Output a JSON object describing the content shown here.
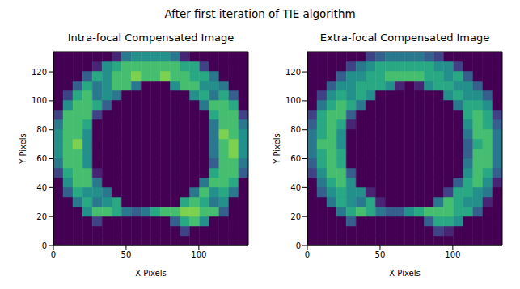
{
  "suptitle": "After first iteration of TIE algorithm",
  "chart_data": [
    {
      "type": "heatmap",
      "title": "Intra-focal Compensated Image",
      "x_label": "X Pixels",
      "y_label": "Y Pixels",
      "xlim": [
        0,
        134
      ],
      "ylim": [
        0,
        134
      ],
      "xticks": [
        0,
        50,
        100
      ],
      "yticks": [
        0,
        20,
        40,
        60,
        80,
        100,
        120
      ],
      "color": "viridis",
      "zlim": [
        0,
        10
      ],
      "cell_size": 6.7,
      "cells": [
        [
          0,
          0,
          0,
          0,
          0,
          0,
          0,
          0,
          0,
          0,
          0,
          0,
          0,
          0,
          0,
          0,
          0,
          0,
          0,
          0
        ],
        [
          0,
          0,
          0,
          0,
          0,
          0,
          0,
          0,
          0,
          0,
          0,
          0,
          0,
          2,
          0,
          0,
          0,
          0,
          0,
          0
        ],
        [
          0,
          0,
          0,
          0,
          2,
          0,
          0,
          0,
          0,
          0,
          0,
          0,
          3,
          6,
          7,
          5,
          0,
          0,
          0,
          0
        ],
        [
          0,
          0,
          0,
          5,
          7,
          7,
          6,
          4,
          3,
          4,
          6,
          7,
          7,
          8,
          8,
          7,
          7,
          3,
          0,
          0
        ],
        [
          0,
          0,
          4,
          6,
          4,
          5,
          6,
          0,
          0,
          0,
          0,
          0,
          0,
          6,
          7,
          6,
          4,
          5,
          0,
          0
        ],
        [
          0,
          3,
          6,
          5,
          5,
          4,
          0,
          0,
          0,
          0,
          0,
          0,
          0,
          0,
          4,
          7,
          5,
          6,
          4,
          0
        ],
        [
          0,
          5,
          7,
          7,
          4,
          0,
          0,
          0,
          0,
          0,
          0,
          0,
          0,
          0,
          0,
          4,
          7,
          7,
          6,
          0
        ],
        [
          2,
          6,
          7,
          7,
          1,
          0,
          0,
          0,
          0,
          0,
          0,
          0,
          0,
          0,
          0,
          0,
          6,
          7,
          7,
          3
        ],
        [
          4,
          7,
          7,
          5,
          0,
          0,
          0,
          0,
          0,
          0,
          0,
          0,
          0,
          0,
          0,
          0,
          3,
          7,
          7,
          4
        ],
        [
          5,
          7,
          7,
          5,
          0,
          0,
          0,
          0,
          0,
          0,
          0,
          0,
          0,
          0,
          0,
          0,
          4,
          7,
          8,
          5
        ],
        [
          5,
          7,
          8,
          5,
          0,
          0,
          0,
          0,
          0,
          0,
          0,
          0,
          0,
          0,
          0,
          0,
          4,
          7,
          8,
          5
        ],
        [
          5,
          7,
          7,
          5,
          0,
          0,
          0,
          0,
          0,
          0,
          0,
          0,
          0,
          0,
          0,
          0,
          4,
          8,
          7,
          5
        ],
        [
          4,
          7,
          7,
          6,
          0,
          0,
          0,
          0,
          0,
          0,
          0,
          0,
          0,
          0,
          0,
          0,
          4,
          7,
          7,
          4
        ],
        [
          2,
          7,
          7,
          7,
          2,
          0,
          0,
          0,
          0,
          0,
          0,
          0,
          0,
          0,
          0,
          0,
          6,
          7,
          7,
          2
        ],
        [
          0,
          5,
          7,
          7,
          6,
          3,
          0,
          0,
          0,
          0,
          0,
          0,
          0,
          0,
          0,
          4,
          7,
          7,
          6,
          0
        ],
        [
          0,
          2,
          6,
          7,
          4,
          5,
          4,
          0,
          0,
          0,
          0,
          0,
          0,
          0,
          5,
          6,
          4,
          6,
          3,
          0
        ],
        [
          0,
          0,
          3,
          6,
          4,
          5,
          7,
          7,
          4,
          0,
          0,
          0,
          5,
          7,
          7,
          5,
          5,
          4,
          0,
          0
        ],
        [
          0,
          0,
          0,
          3,
          6,
          5,
          7,
          7,
          8,
          7,
          7,
          8,
          7,
          7,
          6,
          6,
          4,
          0,
          0,
          0
        ],
        [
          0,
          0,
          0,
          0,
          1,
          5,
          6,
          7,
          7,
          7,
          7,
          7,
          7,
          6,
          6,
          2,
          0,
          0,
          0,
          0
        ],
        [
          0,
          0,
          0,
          0,
          0,
          0,
          1,
          4,
          5,
          5,
          5,
          5,
          4,
          1,
          0,
          0,
          0,
          0,
          0,
          0
        ]
      ]
    },
    {
      "type": "heatmap",
      "title": "Extra-focal Compensated Image",
      "x_label": "X Pixels",
      "y_label": "Y Pixels",
      "xlim": [
        0,
        134
      ],
      "ylim": [
        0,
        134
      ],
      "xticks": [
        0,
        50,
        100
      ],
      "yticks": [
        0,
        20,
        40,
        60,
        80,
        100,
        120
      ],
      "color": "viridis",
      "zlim": [
        0,
        10
      ],
      "cell_size": 6.7,
      "cells": [
        [
          0,
          0,
          0,
          0,
          0,
          0,
          0,
          0,
          0,
          0,
          0,
          0,
          0,
          0,
          0,
          0,
          0,
          0,
          0,
          0
        ],
        [
          0,
          0,
          0,
          0,
          0,
          0,
          0,
          0,
          0,
          0,
          0,
          0,
          0,
          2,
          1,
          0,
          0,
          0,
          0,
          0
        ],
        [
          0,
          0,
          0,
          0,
          3,
          0,
          0,
          0,
          0,
          0,
          0,
          0,
          3,
          6,
          6,
          5,
          0,
          0,
          0,
          0
        ],
        [
          0,
          0,
          0,
          4,
          6,
          7,
          6,
          4,
          3,
          3,
          5,
          6,
          7,
          7,
          7,
          6,
          6,
          3,
          0,
          0
        ],
        [
          0,
          0,
          4,
          6,
          5,
          4,
          6,
          1,
          0,
          0,
          0,
          0,
          0,
          4,
          7,
          6,
          5,
          5,
          1,
          0
        ],
        [
          0,
          3,
          5,
          6,
          5,
          5,
          1,
          0,
          0,
          0,
          0,
          0,
          0,
          0,
          2,
          6,
          6,
          5,
          4,
          0
        ],
        [
          0,
          4,
          6,
          7,
          5,
          0,
          0,
          0,
          0,
          0,
          0,
          0,
          0,
          0,
          0,
          3,
          6,
          7,
          5,
          1
        ],
        [
          2,
          5,
          7,
          7,
          3,
          0,
          0,
          0,
          0,
          0,
          0,
          0,
          0,
          0,
          0,
          0,
          5,
          7,
          6,
          3
        ],
        [
          3,
          6,
          7,
          6,
          0,
          0,
          0,
          0,
          0,
          0,
          0,
          0,
          0,
          0,
          0,
          0,
          4,
          7,
          7,
          4
        ],
        [
          4,
          6,
          7,
          6,
          0,
          0,
          0,
          0,
          0,
          0,
          0,
          0,
          0,
          0,
          0,
          0,
          3,
          7,
          7,
          4
        ],
        [
          4,
          7,
          7,
          5,
          0,
          0,
          0,
          0,
          0,
          0,
          0,
          0,
          0,
          0,
          0,
          0,
          3,
          6,
          7,
          4
        ],
        [
          4,
          6,
          7,
          5,
          0,
          0,
          0,
          0,
          0,
          0,
          0,
          0,
          0,
          0,
          0,
          0,
          4,
          7,
          7,
          4
        ],
        [
          3,
          6,
          7,
          6,
          1,
          0,
          0,
          0,
          0,
          0,
          0,
          0,
          0,
          0,
          0,
          0,
          5,
          7,
          6,
          3
        ],
        [
          2,
          6,
          7,
          7,
          3,
          0,
          0,
          0,
          0,
          0,
          0,
          0,
          0,
          0,
          0,
          0,
          6,
          7,
          6,
          2
        ],
        [
          0,
          4,
          6,
          7,
          6,
          4,
          0,
          0,
          0,
          0,
          0,
          0,
          0,
          0,
          0,
          4,
          6,
          6,
          5,
          0
        ],
        [
          0,
          2,
          5,
          6,
          5,
          6,
          5,
          0,
          0,
          0,
          0,
          0,
          0,
          0,
          5,
          6,
          5,
          5,
          3,
          0
        ],
        [
          0,
          0,
          3,
          5,
          5,
          6,
          6,
          6,
          5,
          1,
          0,
          1,
          5,
          6,
          6,
          5,
          5,
          3,
          0,
          0
        ],
        [
          0,
          0,
          0,
          3,
          5,
          5,
          6,
          6,
          7,
          7,
          7,
          7,
          6,
          6,
          5,
          6,
          3,
          0,
          0,
          0
        ],
        [
          0,
          0,
          0,
          0,
          2,
          4,
          5,
          6,
          6,
          6,
          6,
          6,
          6,
          5,
          5,
          2,
          0,
          0,
          0,
          0
        ],
        [
          0,
          0,
          0,
          0,
          0,
          0,
          2,
          3,
          4,
          4,
          4,
          4,
          3,
          2,
          0,
          0,
          0,
          0,
          0,
          0
        ]
      ]
    }
  ]
}
